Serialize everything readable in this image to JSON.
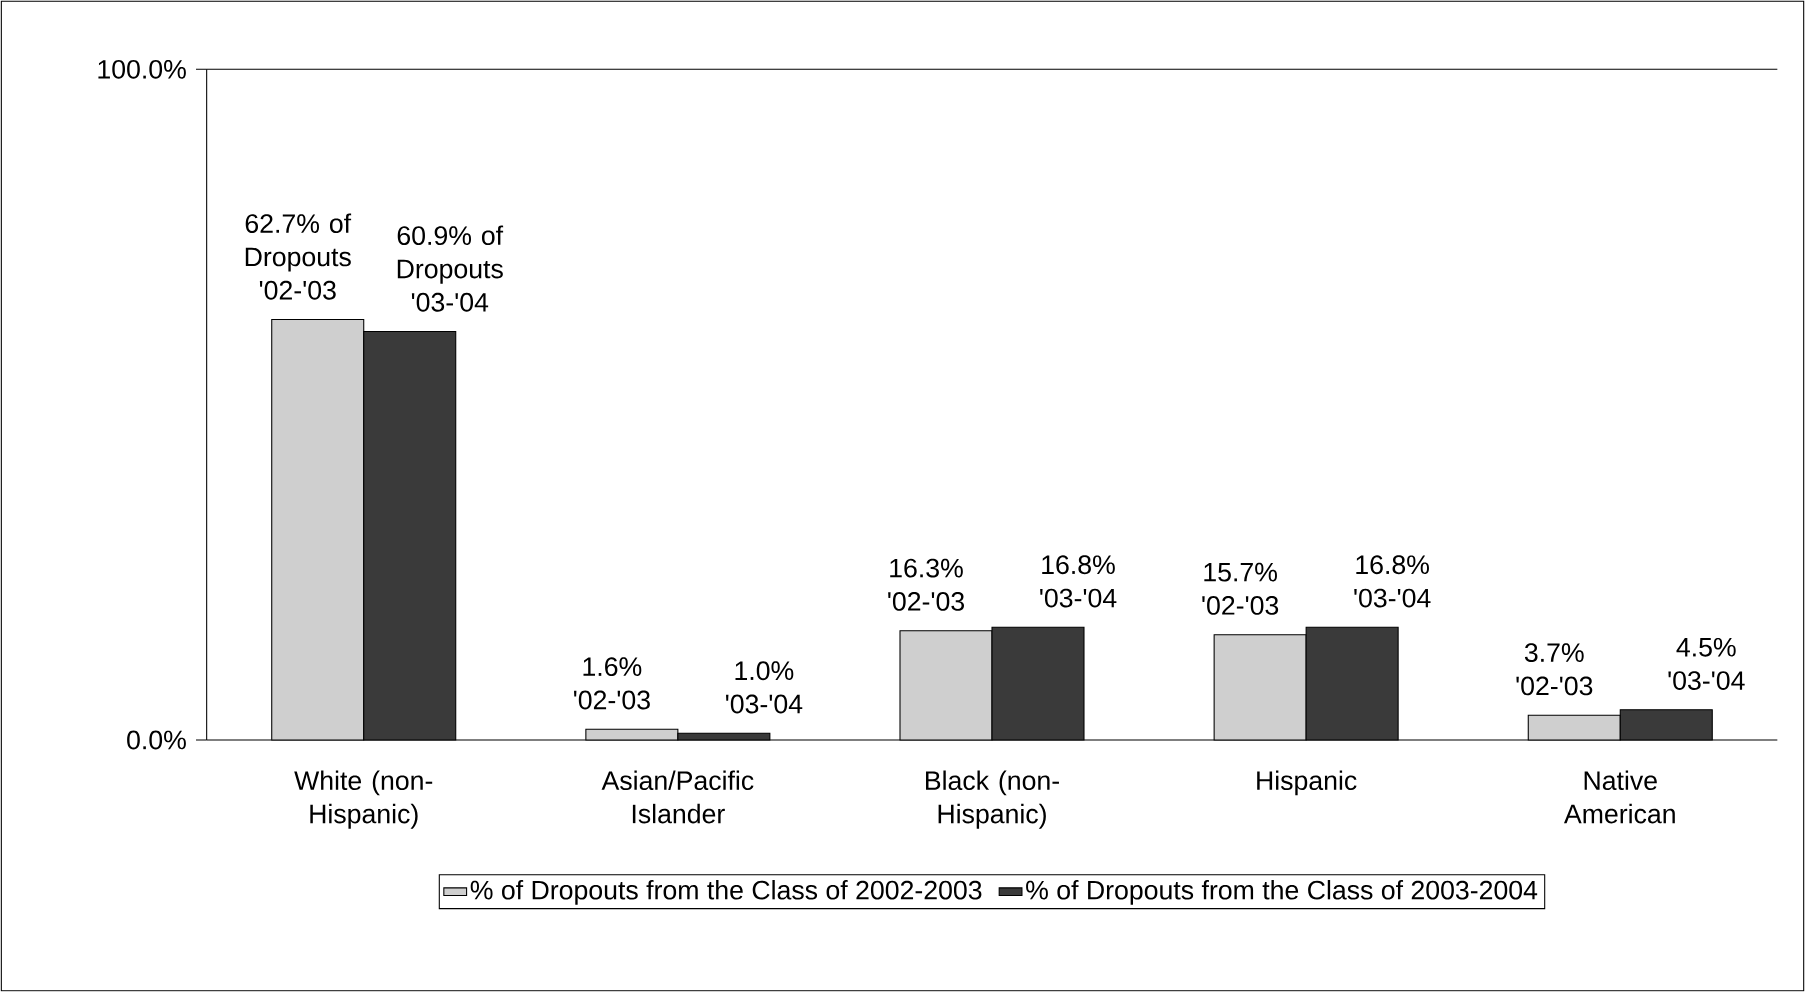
{
  "chart_data": {
    "type": "bar",
    "categories": [
      "White (non-Hispanic)",
      "Asian/Pacific Islander",
      "Black (non-Hispanic)",
      "Hispanic",
      "Native American"
    ],
    "series": [
      {
        "name": "% of Dropouts from the Class of 2002-2003",
        "color": "#cfcfcf",
        "values": [
          62.7,
          1.6,
          16.3,
          15.7,
          3.7
        ],
        "value_labels": [
          "62.7% of Dropouts '02-'03",
          "1.6% '02-'03",
          "16.3% '02-'03",
          "15.7% '02-'03",
          "3.7% '02-'03"
        ]
      },
      {
        "name": "% of Dropouts from the Class of 2003-2004",
        "color": "#3a3a3a",
        "values": [
          60.9,
          1.0,
          16.8,
          16.8,
          4.5
        ],
        "value_labels": [
          "60.9% of Dropouts '03-'04",
          "1.0% '03-'04",
          "16.8% '03-'04",
          "16.8% '03-'04",
          "4.5% '03-'04"
        ]
      }
    ],
    "ylim": [
      0,
      100
    ],
    "yticks": [
      {
        "value": 0,
        "label": "0.0%"
      },
      {
        "value": 100,
        "label": "100.0%"
      }
    ],
    "legend": "bottom"
  }
}
